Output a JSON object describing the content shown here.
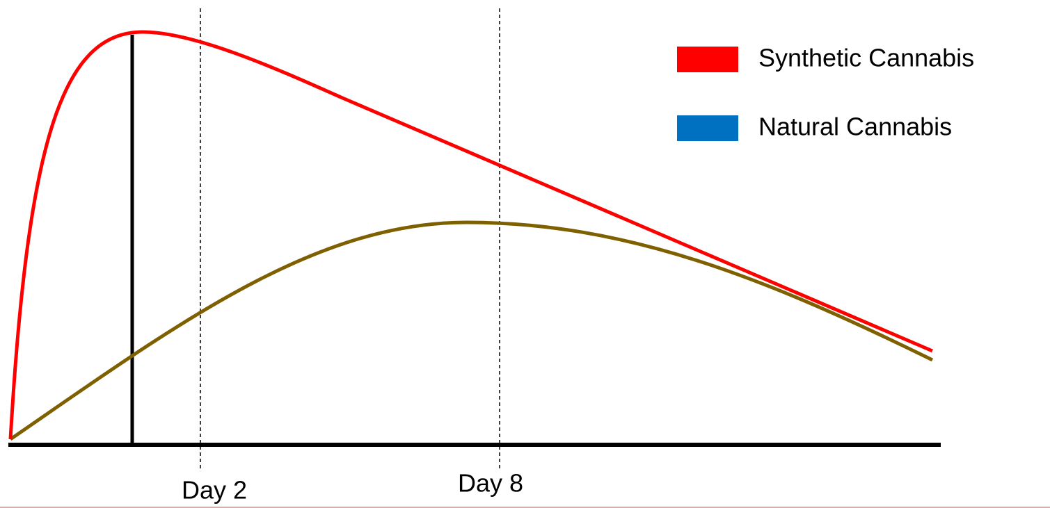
{
  "legend": [
    {
      "label": "Synthetic Cannabis"
    },
    {
      "label": "Natural Cannabis"
    }
  ],
  "markers": [
    {
      "label": "Day 2"
    },
    {
      "label": "Day 8"
    }
  ]
}
